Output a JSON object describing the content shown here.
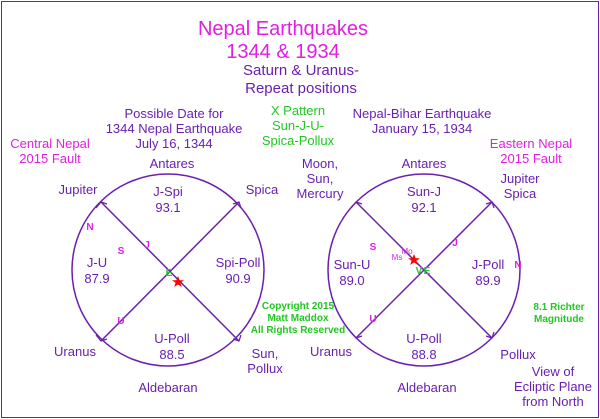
{
  "title": {
    "line1": "Nepal Earthquakes",
    "line2": "1344 & 1934",
    "line3": "Saturn & Uranus-",
    "line4": "Repeat positions"
  },
  "header": {
    "left_date": [
      "Possible Date for",
      "1344 Nepal Earthquake",
      "July 16, 1344"
    ],
    "x_pattern": [
      "X Pattern",
      "Sun-J-U-",
      "Spica-Pollux"
    ],
    "right_date": [
      "Nepal-Bihar Earthquake",
      "January 15, 1934"
    ],
    "central_fault": [
      "Central Nepal",
      "2015 Fault"
    ],
    "eastern_fault": [
      "Eastern Nepal",
      "2015 Fault"
    ],
    "moon": [
      "Moon,",
      "Sun,",
      "Mercury"
    ]
  },
  "left_wheel": {
    "top_star": "Antares",
    "bottom_star": "Aldebaran",
    "upper_left": "Jupiter",
    "upper_right": "Spica",
    "lower_left": "Uranus",
    "lower_right": [
      "Sun,",
      "Pollux"
    ],
    "top": {
      "label": "J-Spi",
      "value": "93.1"
    },
    "left": {
      "label": "J-U",
      "value": "87.9"
    },
    "right": {
      "label": "Spi-Poll",
      "value": "90.9"
    },
    "bottom": {
      "label": "U-Poll",
      "value": "88.5"
    },
    "markers": {
      "n": "N",
      "s": "S",
      "j": "J",
      "u": "U",
      "e": "E"
    }
  },
  "right_wheel": {
    "top_star": "Antares",
    "bottom_star": "Aldebaran",
    "upper_right": [
      "Jupiter",
      "Spica"
    ],
    "lower_left": "Uranus",
    "lower_right": "Pollux",
    "top": {
      "label": "Sun-J",
      "value": "92.1"
    },
    "left": {
      "label": "Sun-U",
      "value": "89.0"
    },
    "right": {
      "label": "J-Poll",
      "value": "89.9"
    },
    "bottom": {
      "label": "U-Poll",
      "value": "88.8"
    },
    "markers": {
      "n": "N",
      "s": "S",
      "j": "J",
      "u": "U",
      "v": "V",
      "e": "E",
      "ms": "Ms",
      "mo": "Mo"
    }
  },
  "copyright": [
    "Copyright 2015",
    "Matt Maddox",
    "All Rights Reserved"
  ],
  "magnitude": [
    "8.1 Richter",
    "Magnitude"
  ],
  "view_note": [
    "View of",
    "Ecliptic Plane",
    "from North"
  ],
  "colors": {
    "purple": "#6a1fb0",
    "magenta": "#e01fe0",
    "green": "#22c722",
    "red": "#ff0000"
  }
}
